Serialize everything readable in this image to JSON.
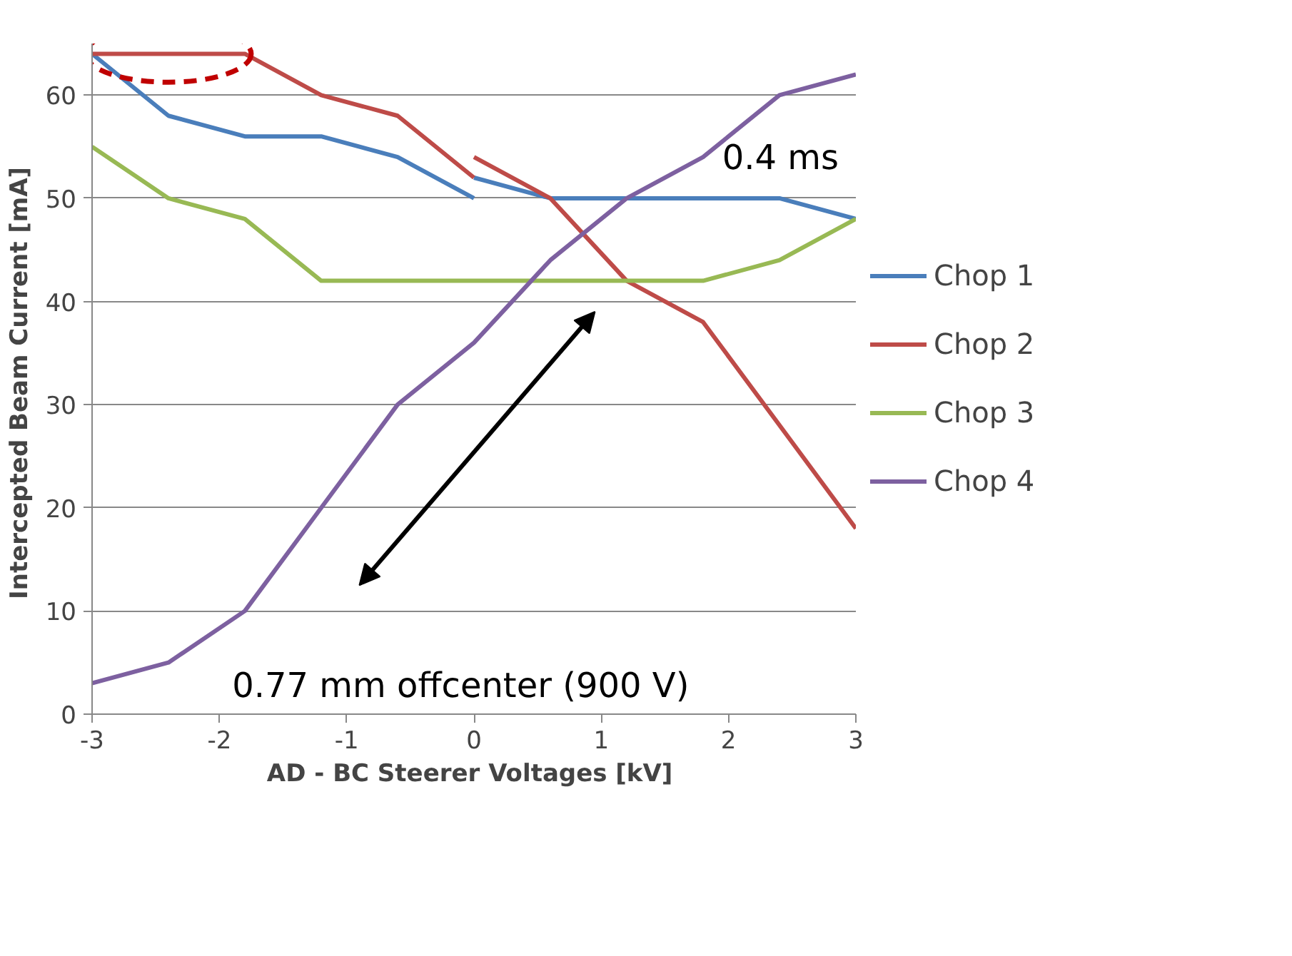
{
  "chart_data": {
    "type": "line",
    "xlabel": "AD - BC Steerer Voltages  [kV]",
    "ylabel": "Intercepted Beam Current  [mA]",
    "xlim": [
      -3,
      3
    ],
    "xticks": [
      -3,
      -2,
      -1,
      0,
      1,
      2,
      3
    ],
    "ylim": [
      0,
      65
    ],
    "yticks": [
      0,
      10,
      20,
      30,
      40,
      50,
      60
    ],
    "grid": "y",
    "legend": "right",
    "series": [
      {
        "name": "Chop 1",
        "color": "#4a7ebb",
        "x": [
          -3,
          -2.4,
          -1.8,
          -1.2,
          -0.6,
          0,
          null,
          0,
          0.6,
          1.2,
          1.8,
          2.4,
          3
        ],
        "values": [
          64,
          58,
          56,
          56,
          54,
          50,
          null,
          52,
          50,
          50,
          50,
          50,
          48
        ]
      },
      {
        "name": "Chop 2",
        "color": "#be4b48",
        "x": [
          -3,
          -2.4,
          -1.8,
          -1.2,
          -0.6,
          0,
          null,
          0,
          0.6,
          1.2,
          1.8,
          2.4,
          3
        ],
        "values": [
          64,
          64,
          64,
          60,
          58,
          52,
          null,
          54,
          50,
          42,
          38,
          28,
          18
        ]
      },
      {
        "name": "Chop 3",
        "color": "#98b954",
        "x": [
          -3,
          -2.4,
          -1.8,
          -1.2,
          -0.6,
          0,
          0.6,
          1.2,
          1.8,
          2.4,
          3
        ],
        "values": [
          55,
          50,
          48,
          42,
          42,
          42,
          42,
          42,
          42,
          44,
          48
        ]
      },
      {
        "name": "Chop 4",
        "color": "#7d60a0",
        "x": [
          -3,
          -2.4,
          -1.8,
          -1.2,
          -0.6,
          0,
          0.6,
          1.2,
          1.8,
          2.4,
          3
        ],
        "values": [
          3,
          5,
          10,
          20,
          30,
          36,
          44,
          50,
          54,
          60,
          62
        ]
      }
    ],
    "annotations": [
      "0.4 ms",
      "0.77 mm offcenter (900 V)"
    ]
  }
}
